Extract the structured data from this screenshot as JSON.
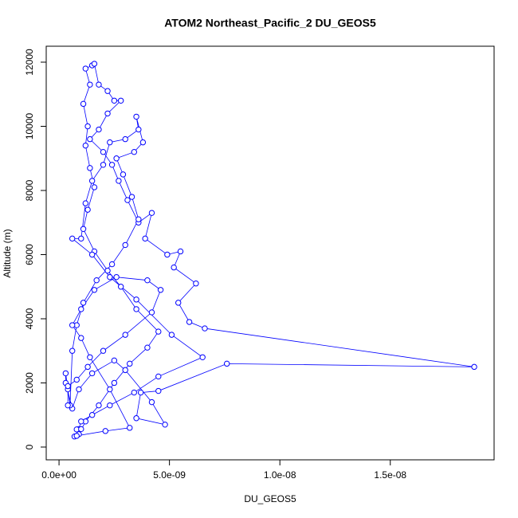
{
  "chart_data": {
    "type": "line",
    "marker": "circle",
    "title": "ATOM2 Northeast_Pacific_2 DU_GEOS5",
    "x_label": "DU_GEOS5",
    "y_label": "Altitude (m)",
    "color": "#0000ff",
    "xlim": [
      -5.8e-10,
      1.97e-08
    ],
    "ylim": [
      -398,
      12497
    ],
    "xticks": [
      {
        "value": 0,
        "label": "0.0e+00"
      },
      {
        "value": 5e-09,
        "label": "5.0e-09"
      },
      {
        "value": 1e-08,
        "label": "1.0e-08"
      },
      {
        "value": 1.5e-08,
        "label": "1.5e-08"
      }
    ],
    "yticks": [
      0,
      2000,
      4000,
      6000,
      8000,
      10000,
      12000
    ],
    "x": [
      9e-10,
      8e-10,
      1e-09,
      7e-10,
      9e-10,
      1.2e-09,
      1.8e-09,
      2.5e-09,
      3.2e-09,
      4e-09,
      4.5e-09,
      3.5e-09,
      2.8e-09,
      2.2e-09,
      1.6e-09,
      1.1e-09,
      1.3e-09,
      1.6e-09,
      1.4e-09,
      1.2e-09,
      1.3e-09,
      1.1e-09,
      1.4e-09,
      1.2e-09,
      1.5e-09,
      1.6e-09,
      1.8e-09,
      2.2e-09,
      2.5e-09,
      2.8e-09,
      2.2e-09,
      1.8e-09,
      1.4e-09,
      2e-09,
      2.4e-09,
      2.7e-09,
      3.1e-09,
      3.6e-09,
      4.2e-09,
      3.9e-09,
      4.9e-09,
      5.5e-09,
      5.2e-09,
      6.2e-09,
      5.4e-09,
      5.9e-09,
      6.6e-09,
      1.88e-08,
      7.6e-09,
      4.5e-09,
      3.7e-09,
      3.5e-09,
      4.8e-09,
      4.2e-09,
      3e-09,
      2.5e-09,
      1.5e-09,
      9e-10,
      6e-10,
      3e-10,
      3e-10,
      4e-10,
      5e-10,
      6e-10,
      8e-10,
      1.1e-09,
      1.7e-09,
      2.4e-09,
      3e-09,
      3.6e-09,
      3.3e-09,
      2.9e-09,
      2.6e-09,
      3.4e-09,
      3.8e-09,
      3.5e-09,
      3.6e-09,
      3e-09,
      2.3e-09,
      2e-09,
      1.5e-09,
      1.2e-09,
      1e-09,
      6e-10,
      1.5e-09,
      2.3e-09,
      3.5e-09,
      5.1e-09,
      6.5e-09,
      4.5e-09,
      3.4e-09,
      2.3e-09,
      1.5e-09,
      1e-09,
      8e-10,
      2.1e-09,
      3.2e-09,
      2.3e-09,
      1.4e-09,
      1e-09,
      6e-10,
      1e-09,
      1.6e-09,
      2.6e-09,
      4e-09,
      4.6e-09,
      4.2e-09,
      3e-09,
      2e-09,
      1.3e-09,
      8e-10,
      4e-10,
      4e-10
    ],
    "y": [
      560,
      550,
      560,
      330,
      400,
      800,
      1300,
      2000,
      2600,
      3100,
      3600,
      4300,
      5000,
      5500,
      6100,
      6800,
      7400,
      8100,
      8700,
      9400,
      10000,
      10700,
      11300,
      11800,
      11900,
      11950,
      11300,
      11100,
      10800,
      10800,
      10400,
      9900,
      9600,
      9200,
      8800,
      8300,
      7700,
      7000,
      7300,
      6500,
      6000,
      6100,
      5600,
      5100,
      4500,
      3900,
      3700,
      2500,
      2600,
      1750,
      1700,
      900,
      700,
      1400,
      2400,
      2700,
      2300,
      1800,
      1200,
      2000,
      2300,
      1800,
      1300,
      3000,
      3800,
      4500,
      5200,
      5700,
      6300,
      7100,
      7800,
      8500,
      9000,
      9200,
      9500,
      10300,
      9900,
      9600,
      9500,
      8800,
      8300,
      7600,
      6500,
      6500,
      6000,
      5300,
      4600,
      3500,
      2800,
      2200,
      1700,
      1300,
      1000,
      800,
      350,
      500,
      600,
      1800,
      2800,
      3400,
      3800,
      4300,
      4900,
      5300,
      5200,
      4900,
      4200,
      3500,
      3000,
      2500,
      2100,
      1900,
      1300
    ]
  }
}
